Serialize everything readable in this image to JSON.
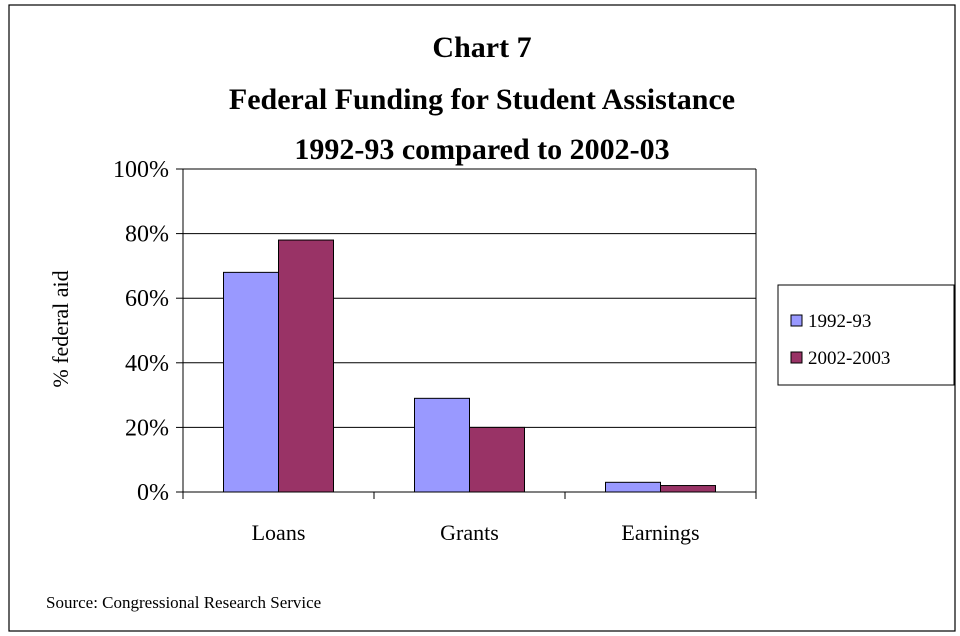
{
  "chart_data": {
    "type": "bar",
    "title_lines": [
      "Chart 7",
      "Federal Funding for Student Assistance",
      "1992-93 compared to 2002-03"
    ],
    "categories": [
      "Loans",
      "Grants",
      "Earnings"
    ],
    "series": [
      {
        "name": "1992-93",
        "values": [
          68,
          29,
          3
        ],
        "color": "#9999ff"
      },
      {
        "name": "2002-2003",
        "values": [
          78,
          20,
          2
        ],
        "color": "#993366"
      }
    ],
    "ylabel": "% federal aid",
    "xlabel": "",
    "ylim": [
      0,
      100
    ],
    "yticks": [
      0,
      20,
      40,
      60,
      80,
      100
    ],
    "ytick_labels": [
      "0%",
      "20%",
      "40%",
      "60%",
      "80%",
      "100%"
    ],
    "grid": true,
    "legend_position": "right",
    "source": "Source: Congressional Research Service"
  }
}
